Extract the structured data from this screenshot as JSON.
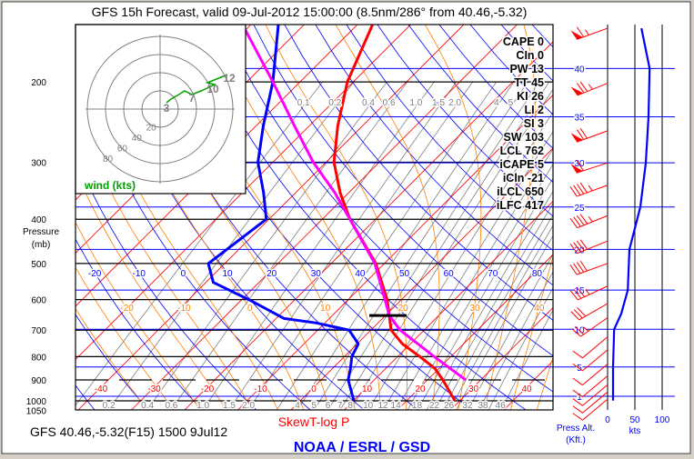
{
  "title": "GFS 15h Forecast, valid 09-Jul-2012 15:00:00 (8.5nm/286° from 40.46,-5.32)",
  "footer": {
    "station": "GFS 40.46,-5.32(F15) 1500 9Jul12",
    "chart_type": "SkewT-log P",
    "credit": "NOAA / ESRL / GSD"
  },
  "colors": {
    "temperature": "#ff0000",
    "dewpoint": "#0000ff",
    "parcel": "#ff00ff",
    "isotherm": "#ff0000",
    "dry_adiabat": "#0000ff",
    "moist_adiabat": "#ff7f00",
    "mixing_ratio": "#808080",
    "hodograph": "#00a000",
    "barb": "#ff0000"
  },
  "chart_data": {
    "type": "skewt",
    "title": "GFS 15h Forecast, valid 09-Jul-2012 15:00:00 (8.5nm/286° from 40.46,-5.32)",
    "ylabel": [
      "Pressure",
      "(mb)"
    ],
    "plim": [
      1050,
      150
    ],
    "pressure_ticks": [
      200,
      300,
      400,
      500,
      600,
      700,
      800,
      900,
      1000,
      1050
    ],
    "isotherm_labels": [
      -40,
      -30,
      -20,
      -10,
      0,
      10,
      20,
      30,
      40
    ],
    "dry_adiabat_labels": [
      -20,
      -10,
      0,
      10,
      20,
      30,
      40,
      50,
      60,
      70,
      80
    ],
    "moist_adiabat_labels": [
      -20,
      -10,
      0,
      10,
      20,
      30,
      40
    ],
    "mixing_ratio_labels_top": [
      "0.1",
      "0.2",
      "0.4",
      "0.6",
      "1.0",
      "1.5",
      "2.0",
      "4",
      "5"
    ],
    "mixing_ratio_labels_bottom": [
      "0.2",
      "0.4",
      "0.6",
      "1.0",
      "1.5",
      "2.0",
      "4",
      "5",
      "6",
      "7",
      "8",
      "10",
      "12",
      "14",
      "18",
      "22",
      "26",
      "32",
      "38",
      "46"
    ],
    "temperature": [
      [
        1000,
        29.1
      ],
      [
        900,
        22.9
      ],
      [
        850,
        19.3
      ],
      [
        800,
        14.2
      ],
      [
        750,
        8.5
      ],
      [
        700,
        3.8
      ],
      [
        650,
        0.7
      ],
      [
        600,
        -2.7
      ],
      [
        500,
        -11.6
      ],
      [
        400,
        -24.8
      ],
      [
        350,
        -31.6
      ],
      [
        300,
        -38.5
      ],
      [
        250,
        -44.6
      ],
      [
        200,
        -51.1
      ],
      [
        150,
        -57.1
      ]
    ],
    "dewpoint": [
      [
        1000,
        10.1
      ],
      [
        900,
        5.1
      ],
      [
        850,
        3.4
      ],
      [
        800,
        1.4
      ],
      [
        750,
        0.2
      ],
      [
        700,
        -4.1
      ],
      [
        675,
        -11.6
      ],
      [
        660,
        -18.5
      ],
      [
        600,
        -28.7
      ],
      [
        550,
        -38.6
      ],
      [
        500,
        -43.1
      ],
      [
        480,
        -42.6
      ],
      [
        400,
        -40.5
      ],
      [
        350,
        -46.0
      ],
      [
        300,
        -52.8
      ],
      [
        250,
        -58.6
      ],
      [
        200,
        -65.1
      ],
      [
        150,
        -74.8
      ]
    ],
    "parcel": [
      [
        900,
        27.2
      ],
      [
        800,
        16.9
      ],
      [
        700,
        5.5
      ],
      [
        650,
        0.7
      ],
      [
        600,
        -3.1
      ],
      [
        500,
        -11.8
      ],
      [
        400,
        -24.8
      ],
      [
        350,
        -32.6
      ],
      [
        300,
        -42.4
      ],
      [
        250,
        -52.7
      ],
      [
        200,
        -65.1
      ],
      [
        150,
        -81.5
      ]
    ],
    "lcl_marker_p": 650,
    "indices": [
      {
        "label": "CAPE",
        "value": "0"
      },
      {
        "label": "CIn",
        "value": "0"
      },
      {
        "label": "PW",
        "value": "13"
      },
      {
        "label": "TT",
        "value": "45"
      },
      {
        "label": "KI",
        "value": "26"
      },
      {
        "label": "LI",
        "value": "2"
      },
      {
        "label": "SI",
        "value": "3"
      },
      {
        "label": "SW",
        "value": "103"
      },
      {
        "label": "LCL",
        "value": "762"
      },
      {
        "label": "iCAPE",
        "value": "5"
      },
      {
        "label": "iCln",
        "value": "-21"
      },
      {
        "label": "iLCL",
        "value": "650"
      },
      {
        "label": "iLFC",
        "value": "417"
      }
    ],
    "hodograph": {
      "label": "wind (kts)",
      "rings": [
        20,
        40,
        60,
        80
      ],
      "path": [
        [
          7,
          7
        ],
        [
          12,
          11
        ],
        [
          19,
          15
        ],
        [
          27,
          20
        ],
        [
          35,
          16
        ],
        [
          45,
          20
        ],
        [
          54,
          24
        ],
        [
          60,
          27
        ],
        [
          52,
          29
        ],
        [
          62,
          33
        ],
        [
          74,
          38
        ]
      ],
      "points": [
        {
          "label": "3",
          "u": 7,
          "v": 1
        },
        {
          "label": "7",
          "u": 35,
          "v": 12
        },
        {
          "label": "10",
          "u": 58,
          "v": 22
        },
        {
          "label": "12",
          "u": 76,
          "v": 34
        }
      ]
    },
    "altitude": {
      "label": "Press Alt.",
      "units": "(Kft.)",
      "ticks": [
        40,
        35,
        30,
        25,
        20,
        15,
        10,
        5,
        1
      ]
    },
    "wind_speed": {
      "ticks": [
        0,
        50,
        100
      ],
      "units": "kts",
      "profile": [
        [
          44,
          62
        ],
        [
          40,
          77
        ],
        [
          35,
          75
        ],
        [
          30,
          70
        ],
        [
          25,
          60
        ],
        [
          20,
          40
        ],
        [
          15,
          37
        ],
        [
          12,
          25
        ],
        [
          10,
          12
        ],
        [
          5,
          10
        ],
        [
          1,
          10
        ],
        [
          0.4,
          10
        ]
      ]
    },
    "wind_barbs": [
      {
        "kft": 44,
        "speed": 65,
        "dir": 250
      },
      {
        "kft": 38.5,
        "speed": 75,
        "dir": 248
      },
      {
        "kft": 33.5,
        "speed": 70,
        "dir": 250
      },
      {
        "kft": 30,
        "speed": 60,
        "dir": 252
      },
      {
        "kft": 27.5,
        "speed": 45,
        "dir": 250
      },
      {
        "kft": 24,
        "speed": 45,
        "dir": 248
      },
      {
        "kft": 21,
        "speed": 40,
        "dir": 248
      },
      {
        "kft": 18.3,
        "speed": 40,
        "dir": 250
      },
      {
        "kft": 15.5,
        "speed": 35,
        "dir": 245
      },
      {
        "kft": 13.3,
        "speed": 30,
        "dir": 240
      },
      {
        "kft": 11.5,
        "speed": 25,
        "dir": 235
      },
      {
        "kft": 9,
        "speed": 10,
        "dir": 230
      },
      {
        "kft": 7.3,
        "speed": 10,
        "dir": 230
      },
      {
        "kft": 5.4,
        "speed": 10,
        "dir": 230
      },
      {
        "kft": 3.8,
        "speed": 10,
        "dir": 230
      },
      {
        "kft": 2.6,
        "speed": 10,
        "dir": 230
      },
      {
        "kft": 1.6,
        "speed": 10,
        "dir": 230
      },
      {
        "kft": 0.6,
        "speed": 10,
        "dir": 230
      }
    ]
  }
}
